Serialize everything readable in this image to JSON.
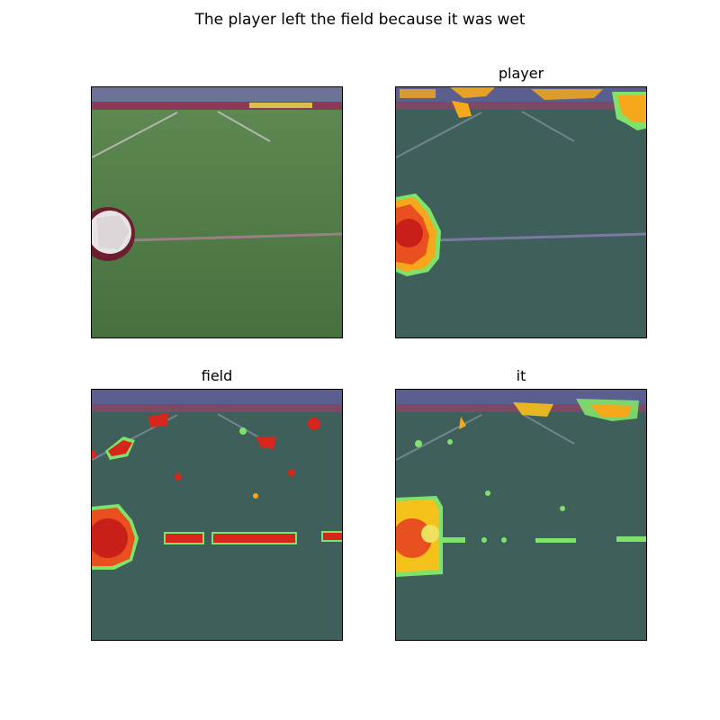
{
  "figure": {
    "title": "The player left the field because it was wet"
  },
  "panels": [
    {
      "title": "",
      "kind": "original-image"
    },
    {
      "title": "player",
      "kind": "attention-heatmap",
      "overlay_colormap": "jet"
    },
    {
      "title": "field",
      "kind": "attention-heatmap",
      "overlay_colormap": "jet"
    },
    {
      "title": "it",
      "kind": "attention-heatmap",
      "overlay_colormap": "jet"
    }
  ],
  "colors": {
    "grass": "#4f7a45",
    "grass_dim": "#3f5f5a",
    "stands": "#5a5f8a",
    "heat_hot": "#d7261b",
    "heat_warm": "#f5a81c",
    "heat_edge": "#7ee36a"
  }
}
